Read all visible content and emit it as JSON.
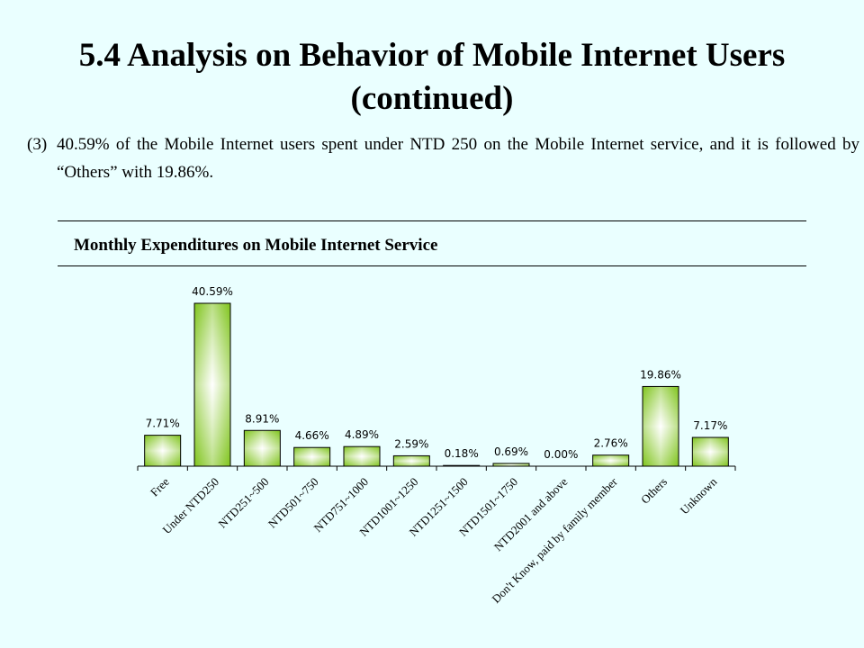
{
  "page": {
    "title_line1": "5.4 Analysis on Behavior of Mobile Internet Users",
    "title_line2": "(continued)",
    "point_number": "(3)",
    "point_text": "40.59% of the Mobile Internet users spent under NTD 250 on the Mobile Internet service, and it is followed by “Others” with 19.86%."
  },
  "chart_data": {
    "type": "bar",
    "title": "Monthly Expenditures on Mobile Internet Service",
    "categories": [
      "Free",
      "Under NTD250",
      "NTD251~500",
      "NTD501~750",
      "NTD751~1000",
      "NTD1001~1250",
      "NTD1251~1500",
      "NTD1501~1750",
      "NTD2001 and above",
      "Don't Know, paid by family member",
      "Others",
      "Unknown"
    ],
    "values": [
      7.71,
      40.59,
      8.91,
      4.66,
      4.89,
      2.59,
      0.18,
      0.69,
      0.0,
      2.76,
      19.86,
      7.17
    ],
    "data_labels": [
      "7.71%",
      "40.59%",
      "8.91%",
      "4.66%",
      "4.89%",
      "2.59%",
      "0.18%",
      "0.69%",
      "0.00%",
      "2.76%",
      "19.86%",
      "7.17%"
    ],
    "ylim": [
      0,
      45
    ],
    "grid": false,
    "bar_color": "#7fc41c"
  }
}
